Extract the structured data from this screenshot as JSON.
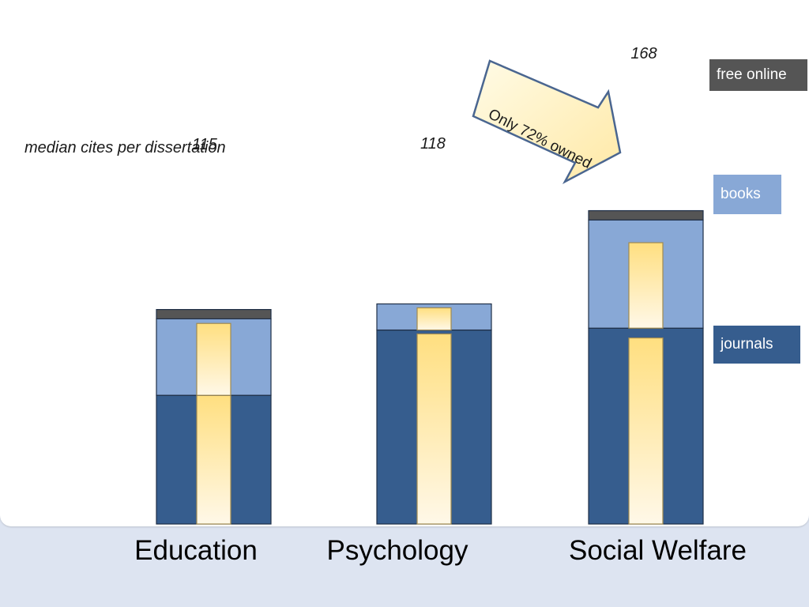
{
  "chart_data": {
    "type": "bar",
    "stacked": true,
    "ylabel": "median cites per dissertation",
    "categories": [
      "Education",
      "Psychology",
      "Social Welfare"
    ],
    "totals": [
      "115",
      "118",
      "168"
    ],
    "series": [
      {
        "name": "journals",
        "values": [
          69,
          104,
          105
        ],
        "color": "#365d8e"
      },
      {
        "name": "books",
        "values": [
          41,
          14,
          58
        ],
        "color": "#88a8d6"
      },
      {
        "name": "free online",
        "values": [
          5,
          0,
          5
        ],
        "color": "#555555"
      }
    ],
    "owned_fraction": {
      "journals": [
        1.0,
        0.98,
        0.95
      ],
      "books": [
        0.94,
        0.85,
        0.79
      ]
    },
    "owned_color": "#ffdf80",
    "annotation": "Only 72% owned",
    "legend_position": "right"
  }
}
